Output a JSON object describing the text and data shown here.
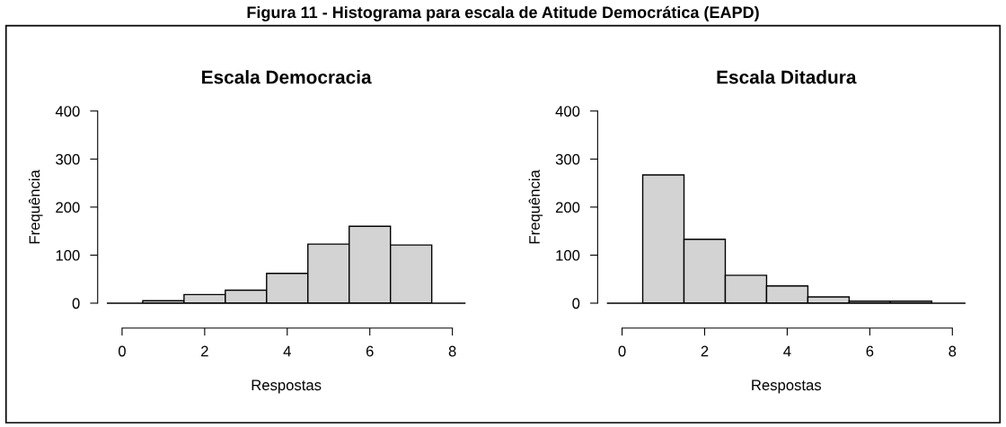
{
  "chart_data": [
    {
      "type": "histogram",
      "title": "Escala Democracia",
      "xlabel": "Respostas",
      "ylabel": "Frequência",
      "bins": [
        0.5,
        1.5,
        2.5,
        3.5,
        4.5,
        5.5,
        6.5,
        7.5
      ],
      "values": [
        5,
        18,
        27,
        62,
        123,
        160,
        121
      ],
      "color": "#d3d3d3",
      "xlim": [
        -0.35,
        8.3
      ],
      "ylim": [
        0,
        400
      ],
      "xticks": [
        0,
        2,
        4,
        6,
        8
      ],
      "yticks": [
        0,
        100,
        200,
        300,
        400
      ],
      "ref_lines": [
        {
          "axis": "y",
          "value": 0
        }
      ],
      "grid": false,
      "annotations": [
        "Figura 11 - Histograma para escala de Atitude Democrática (EAPD)"
      ]
    },
    {
      "type": "histogram",
      "title": "Escala Ditadura",
      "xlabel": "Respostas",
      "ylabel": "Frequência",
      "bins": [
        0.5,
        1.5,
        2.5,
        3.5,
        4.5,
        5.5,
        6.5,
        7.5
      ],
      "values": [
        267,
        133,
        58,
        36,
        13,
        4,
        4
      ],
      "color": "#d3d3d3",
      "xlim": [
        -0.35,
        8.3
      ],
      "ylim": [
        0,
        400
      ],
      "xticks": [
        0,
        2,
        4,
        6,
        8
      ],
      "yticks": [
        0,
        100,
        200,
        300,
        400
      ],
      "ref_lines": [
        {
          "axis": "y",
          "value": 0
        }
      ],
      "grid": false
    }
  ]
}
